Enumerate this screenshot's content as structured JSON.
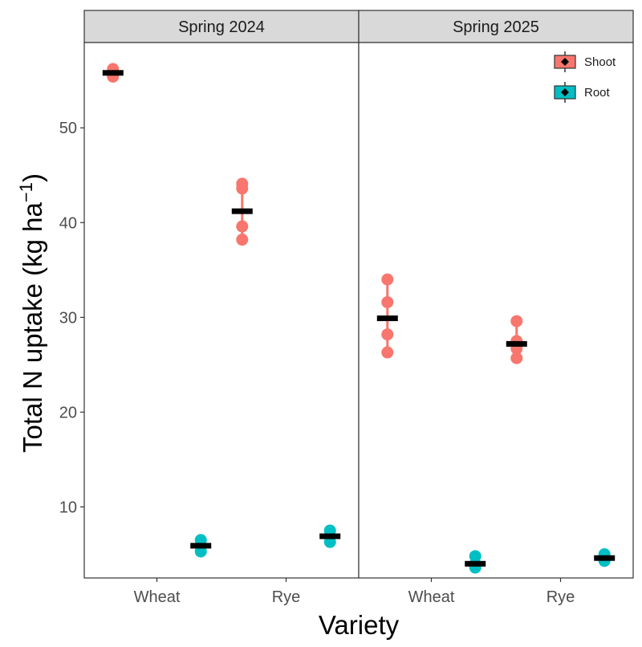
{
  "chart_data": {
    "type": "scatter",
    "xlabel": "Variety",
    "ylabel": "Total N uptake (kg ha",
    "ylabel_superscript": "−1",
    "ylabel_suffix": ")",
    "ylim": [
      2.5,
      59
    ],
    "yticks": [
      10,
      20,
      30,
      40,
      50
    ],
    "categories": [
      "Wheat",
      "Rye"
    ],
    "panels": [
      "Spring 2024",
      "Spring 2025"
    ],
    "grid": false,
    "legend_position": "top-right",
    "series": [
      {
        "name": "Shoot",
        "color": "#F8766D",
        "data": {
          "Spring 2024": {
            "Wheat": {
              "mean": 55.8,
              "points": [
                55.4,
                55.8,
                56.2
              ],
              "errbar": [
                55.4,
                56.2
              ]
            },
            "Rye": {
              "mean": 41.2,
              "points": [
                38.2,
                39.6,
                43.6,
                44.1
              ],
              "errbar": [
                38.3,
                44.1
              ]
            }
          },
          "Spring 2025": {
            "Wheat": {
              "mean": 29.9,
              "points": [
                26.3,
                28.2,
                31.6,
                34.0
              ],
              "errbar": [
                26.6,
                33.7
              ]
            },
            "Rye": {
              "mean": 27.2,
              "points": [
                25.7,
                26.7,
                27.5,
                29.6
              ],
              "errbar": [
                25.7,
                29.2
              ]
            }
          }
        }
      },
      {
        "name": "Root",
        "color": "#00BFC4",
        "data": {
          "Spring 2024": {
            "Wheat": {
              "mean": 5.9,
              "points": [
                5.3,
                5.9,
                6.5
              ],
              "errbar": [
                5.3,
                6.5
              ]
            },
            "Rye": {
              "mean": 6.9,
              "points": [
                6.3,
                6.9,
                7.5
              ],
              "errbar": [
                6.3,
                7.5
              ]
            }
          },
          "Spring 2025": {
            "Wheat": {
              "mean": 4.0,
              "points": [
                3.6,
                4.0,
                4.8
              ],
              "errbar": [
                3.7,
                4.6
              ]
            },
            "Rye": {
              "mean": 4.6,
              "points": [
                4.3,
                4.6,
                5.0
              ],
              "errbar": [
                4.3,
                5.0
              ]
            }
          }
        }
      }
    ]
  }
}
